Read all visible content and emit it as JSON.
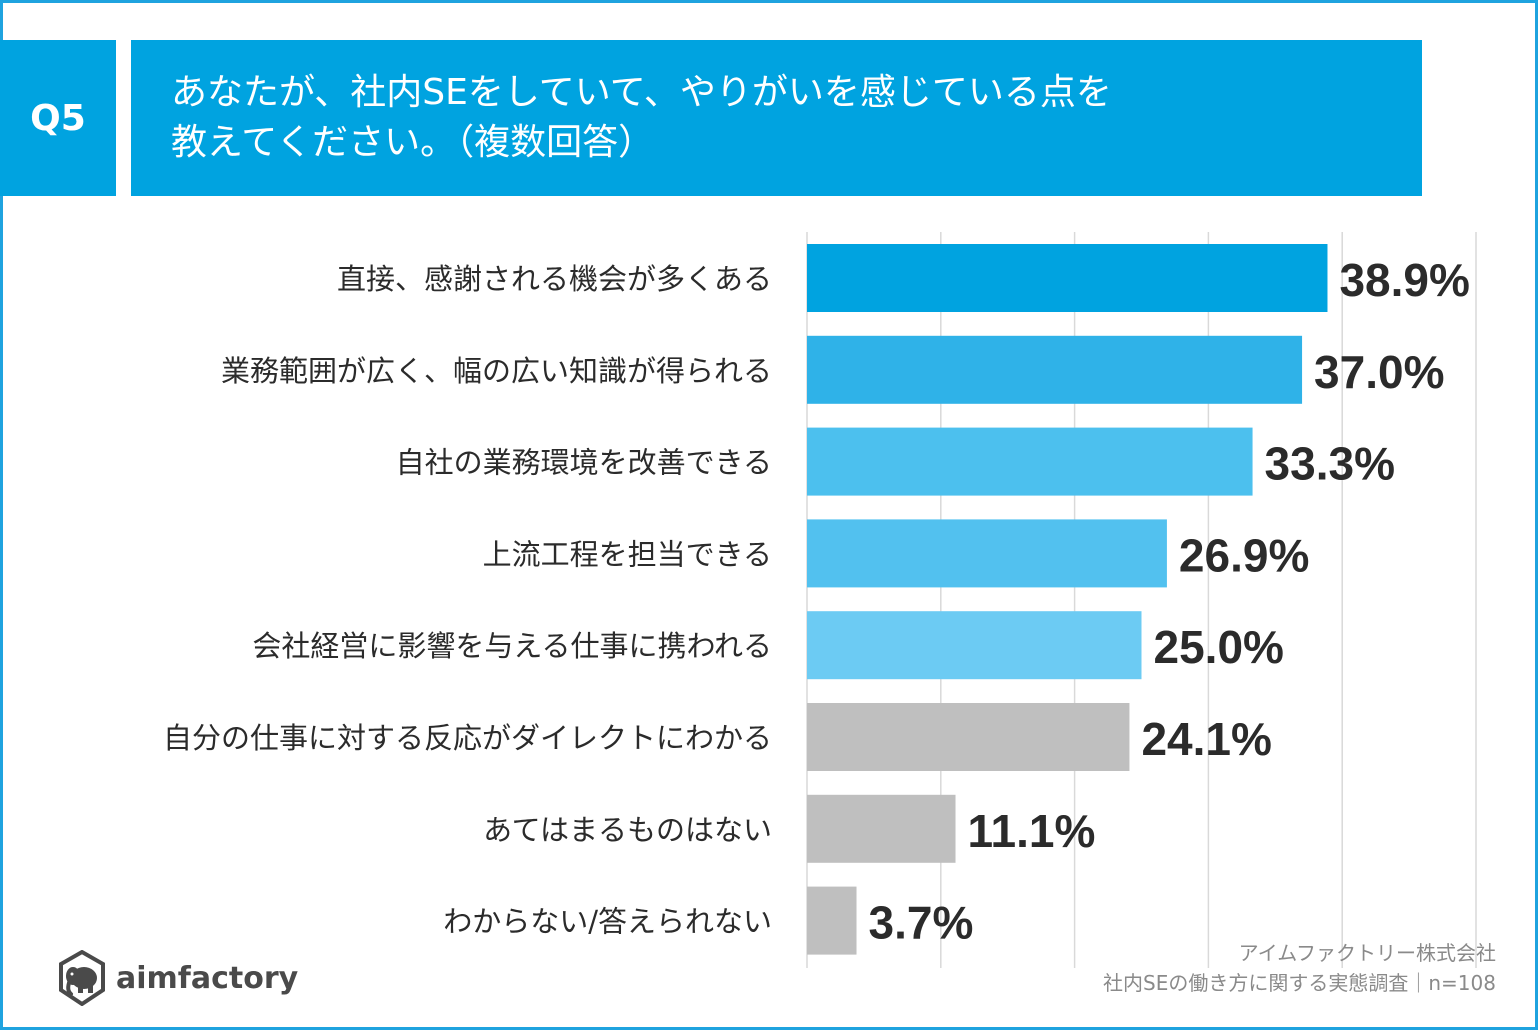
{
  "question": {
    "badge": "Q5",
    "line1": "あなたが、社内SEをしていて、やりがいを感じている点を",
    "line2": "教えてください。（複数回答）"
  },
  "chart_data": {
    "type": "bar",
    "orientation": "horizontal",
    "categories": [
      "直接、感謝される機会が多くある",
      "業務範囲が広く、幅の広い知識が得られる",
      "自社の業務環境を改善できる",
      "上流工程を担当できる",
      "会社経営に影響を与える仕事に携われる",
      "自分の仕事に対する反応がダイレクトにわかる",
      "あてはまるものはない",
      "わからない/答えられない"
    ],
    "values": [
      38.9,
      37.0,
      33.3,
      26.9,
      25.0,
      24.1,
      11.1,
      3.7
    ],
    "value_labels": [
      "38.9%",
      "37.0%",
      "33.3%",
      "26.9%",
      "25.0%",
      "24.1%",
      "11.1%",
      "3.7%"
    ],
    "bar_colors": [
      "#00a3e0",
      "#2fb2e8",
      "#4cc0ee",
      "#52c1ef",
      "#6ccbf3",
      "#bfbfbf",
      "#bfbfbf",
      "#bfbfbf"
    ],
    "xlim": [
      0,
      50
    ],
    "grid": true
  },
  "source": {
    "company": "アイムファクトリー株式会社",
    "survey": "社内SEの働き方に関する実態調査｜n=108"
  },
  "logo": {
    "text": "aimfactory",
    "icon": "elephant-icon"
  }
}
